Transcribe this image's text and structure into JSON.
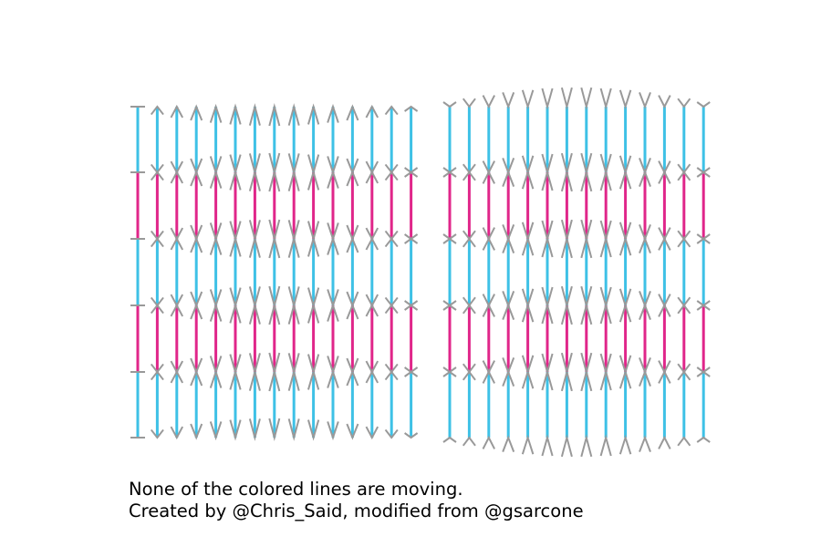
{
  "caption": {
    "line1": "None of the colored lines are moving.",
    "line2": "Created by @Chris_Said, modified from @gsarcone"
  },
  "colors": {
    "blue": "#3ec1e6",
    "magenta": "#e0268a",
    "gray": "#999999"
  },
  "panels": [
    {
      "name": "left",
      "columns": 15,
      "segment_colors": [
        "blue",
        "magenta",
        "blue",
        "magenta",
        "blue"
      ]
    },
    {
      "name": "right",
      "columns": 14,
      "segment_colors": [
        "blue",
        "magenta",
        "blue",
        "magenta",
        "blue"
      ]
    }
  ]
}
